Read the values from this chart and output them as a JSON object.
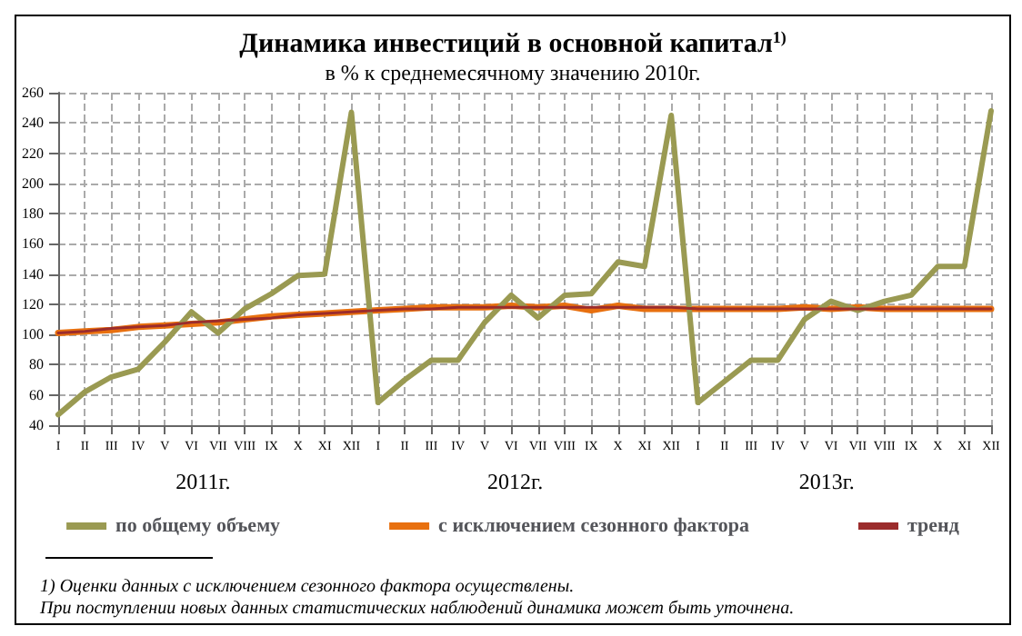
{
  "chart_data": {
    "type": "line",
    "title": "Динамика инвестиций в основной капитал$^{1)}$",
    "subtitle": "в % к среднемесячному значению 2010г.",
    "categories": [
      "I",
      "II",
      "III",
      "IV",
      "V",
      "VI",
      "VII",
      "VIII",
      "IX",
      "X",
      "XI",
      "XII",
      "I",
      "II",
      "III",
      "IV",
      "V",
      "VI",
      "VII",
      "VIII",
      "IX",
      "X",
      "XI",
      "XII",
      "I",
      "II",
      "III",
      "IV",
      "V",
      "VI",
      "VII",
      "VIII",
      "IX",
      "X",
      "XI",
      "XII"
    ],
    "series": [
      {
        "name": "по общему объему",
        "color": "#9a9a52",
        "values": [
          47,
          62,
          72,
          77,
          95,
          115,
          101,
          117,
          127,
          139,
          140,
          247,
          55,
          70,
          83,
          83,
          108,
          126,
          111,
          126,
          127,
          148,
          145,
          245,
          55,
          69,
          83,
          83,
          110,
          122,
          116,
          122,
          126,
          145,
          145,
          248
        ]
      },
      {
        "name": "с исключением сезонного фактора",
        "color": "#e8700f",
        "values": [
          101,
          102,
          103,
          105,
          106,
          107,
          108,
          110,
          112,
          113,
          114,
          115,
          116,
          117,
          118,
          118,
          118,
          119,
          118,
          119,
          116,
          119,
          117,
          117,
          117,
          117,
          117,
          117,
          118,
          117,
          118,
          117,
          117,
          117,
          117,
          117
        ]
      },
      {
        "name": "тренд",
        "color": "#9b2c2c",
        "values": [
          101,
          102,
          104,
          105,
          106,
          108,
          109,
          110,
          111,
          113,
          114,
          115,
          116,
          117,
          117,
          118,
          118,
          118,
          118,
          118,
          118,
          118,
          118,
          118,
          117,
          117,
          117,
          117,
          117,
          117,
          117,
          117,
          117,
          117,
          117,
          117
        ]
      }
    ],
    "ylim": [
      40,
      260
    ],
    "yticks": [
      40,
      60,
      80,
      100,
      120,
      140,
      160,
      180,
      200,
      220,
      240,
      260
    ],
    "grid": true,
    "legend": "bottom",
    "marker": "none",
    "line_style": "solid",
    "annotations": [
      "2011г.",
      "2012г.",
      "2013г.",
      "1) Оценки данных с исключением сезонного фактора осуществлены.\nПри поступлении новых данных статистических наблюдений динамика может быть уточнена."
    ]
  }
}
